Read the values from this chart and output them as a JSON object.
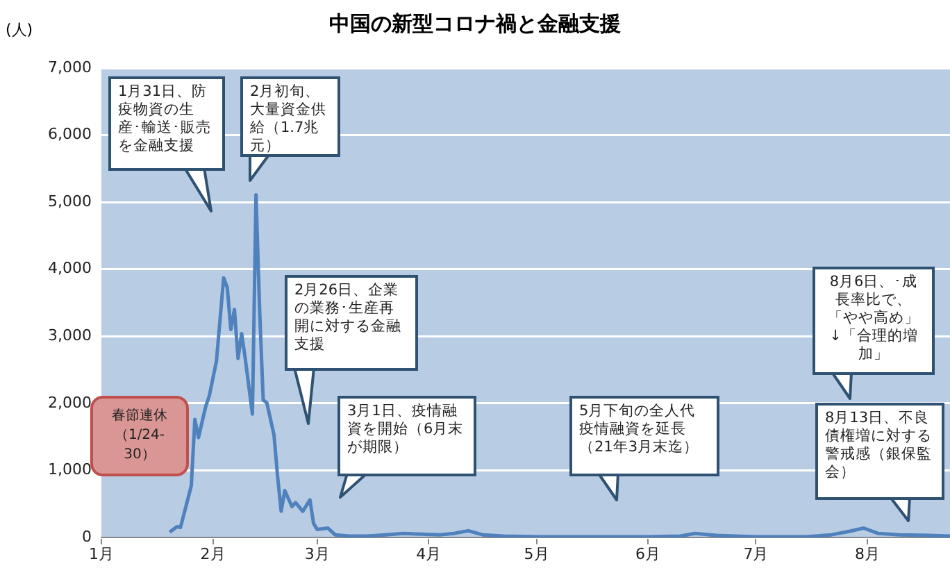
{
  "chart_data": {
    "type": "line",
    "title": "中国の新型コロナ禍と金融支援",
    "ylabel": "(人)",
    "x": [
      "--01-20",
      "--01-22",
      "--01-23",
      "--01-26",
      "--01-27",
      "--01-28",
      "--01-30",
      "--01-31",
      "--02-02",
      "--02-04",
      "--02-05",
      "--02-06",
      "--02-07",
      "--02-08",
      "--02-09",
      "--02-10",
      "--02-12",
      "--02-13",
      "--02-14",
      "--02-15",
      "--02-16",
      "--02-18",
      "--02-19",
      "--02-20",
      "--02-21",
      "--02-23",
      "--02-24",
      "--02-26",
      "--02-28",
      "--02-29",
      "--03-01",
      "--03-04",
      "--03-06",
      "--03-10",
      "--03-15",
      "--03-20",
      "--03-25",
      "--03-30",
      "--04-04",
      "--04-08",
      "--04-12",
      "--04-16",
      "--04-22",
      "--05-01",
      "--05-15",
      "--06-01",
      "--06-10",
      "--06-14",
      "--06-20",
      "--07-01",
      "--07-15",
      "--07-22",
      "--07-27",
      "--07-31",
      "--08-04",
      "--08-10",
      "--08-18",
      "--08-24"
    ],
    "series": [
      {
        "color": "#4f81bd",
        "values": [
          80,
          160,
          150,
          770,
          1760,
          1490,
          1950,
          2110,
          2630,
          3870,
          3730,
          3100,
          3400,
          2670,
          3040,
          2670,
          1840,
          5110,
          3400,
          2050,
          2010,
          1530,
          910,
          390,
          700,
          460,
          520,
          390,
          560,
          210,
          120,
          140,
          40,
          20,
          20,
          40,
          60,
          50,
          40,
          60,
          100,
          40,
          20,
          10,
          10,
          10,
          20,
          60,
          30,
          10,
          10,
          40,
          90,
          140,
          60,
          40,
          30,
          20
        ]
      }
    ],
    "xlim": [
      "--01-01",
      "--08-24"
    ],
    "xticks": [
      {
        "value": "--01-01",
        "label": "1月"
      },
      {
        "value": "--02-01",
        "label": "2月"
      },
      {
        "value": "--03-01",
        "label": "3月"
      },
      {
        "value": "--04-01",
        "label": "4月"
      },
      {
        "value": "--05-01",
        "label": "5月"
      },
      {
        "value": "--06-01",
        "label": "6月"
      },
      {
        "value": "--07-01",
        "label": "7月"
      },
      {
        "value": "--08-01",
        "label": "8月"
      }
    ],
    "ylim": [
      0,
      7000
    ],
    "yticks": [
      0,
      {
        "value": 1000,
        "label": "1,000"
      },
      {
        "value": 2000,
        "label": "2,000"
      },
      {
        "value": 3000,
        "label": "3,000"
      },
      {
        "value": 4000,
        "label": "4,000"
      },
      {
        "value": 5000,
        "label": "5,000"
      },
      {
        "value": 6000,
        "label": "6,000"
      },
      {
        "value": 7000,
        "label": "7,000"
      }
    ],
    "grid": "y",
    "legend": false,
    "marker": "none",
    "line_style": "solid",
    "annotations": [
      "1月31日、防疫物資の生産･輸送･販売を金融支援",
      "2月初旬、大量資金供給（1.7兆元）",
      "2月26日、企業の業務･生産再開に対する金融支援",
      "3月1日、疫情融資を開始（6月末が期限）",
      "5月下旬の全人代疫情融資を延長（21年3月末迄）",
      "8月6日、･成長率比で、「やや高め」↓「合理的増加」",
      "8月13日、不良債権増に対する警戒感（銀保監会）",
      "春節連休（1/24-30）"
    ]
  }
}
